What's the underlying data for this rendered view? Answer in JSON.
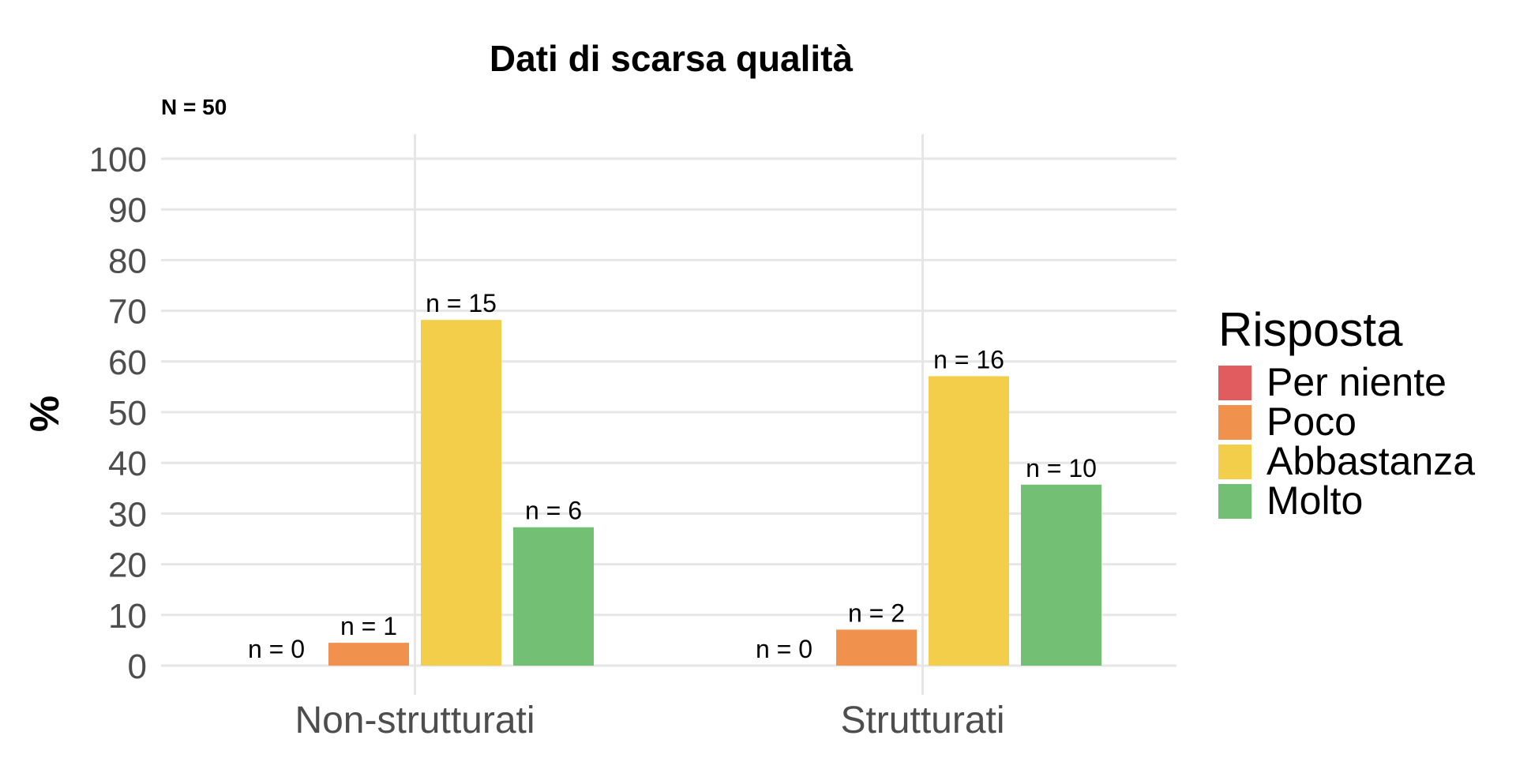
{
  "chart_data": {
    "type": "bar",
    "title": "Dati di scarsa qualità",
    "subtitle": "N = 50",
    "xlabel": "",
    "ylabel": "%",
    "ylim": [
      0,
      100
    ],
    "yticks": [
      "0",
      "10",
      "20",
      "30",
      "40",
      "50",
      "60",
      "70",
      "80",
      "90",
      "100"
    ],
    "categories": [
      "Non-strutturati",
      "Strutturati"
    ],
    "legend": {
      "title": "Risposta",
      "position": "right"
    },
    "grid": true,
    "series": [
      {
        "name": "Per niente",
        "color": "#E05C5F",
        "values": [
          0,
          0
        ],
        "labels": [
          "n = 0",
          "n = 0"
        ]
      },
      {
        "name": "Poco",
        "color": "#F0914E",
        "values": [
          4.5,
          7.1
        ],
        "labels": [
          "n = 1",
          "n = 2"
        ]
      },
      {
        "name": "Abbastanza",
        "color": "#F2CE4B",
        "values": [
          68.2,
          57.1
        ],
        "labels": [
          "n = 15",
          "n = 16"
        ]
      },
      {
        "name": "Molto",
        "color": "#73C074",
        "values": [
          27.3,
          35.7
        ],
        "labels": [
          "n = 6",
          "n = 10"
        ]
      }
    ]
  }
}
